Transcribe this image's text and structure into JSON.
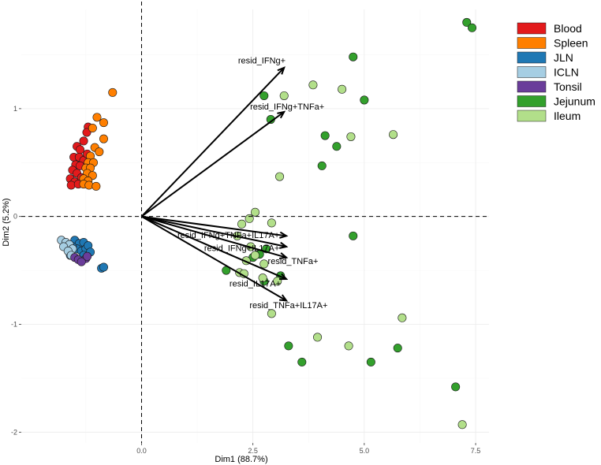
{
  "chart_data": {
    "type": "scatter",
    "title": "",
    "xlabel": "Dim1 (88.7%)",
    "ylabel": "Dim2 (5.2%)",
    "xlim": [
      -2.7,
      7.8
    ],
    "ylim": [
      -2.1,
      1.92
    ],
    "x_ticks": [
      0,
      2.5,
      5,
      7.5
    ],
    "x_tick_labels": [
      "0.0",
      "2.5",
      "5.0",
      "7.5"
    ],
    "y_ticks": [
      -2,
      -1,
      0,
      1
    ],
    "y_tick_labels": [
      "-2",
      "-1",
      "0",
      "1"
    ],
    "grid": true,
    "reference_lines": {
      "x": 0,
      "y": 0
    },
    "legend_position": "top-right",
    "series": [
      {
        "name": "Blood",
        "color": "#e31a1c",
        "points": [
          [
            -1.2,
            0.83
          ],
          [
            -1.23,
            0.78
          ],
          [
            -1.3,
            0.7
          ],
          [
            -1.45,
            0.65
          ],
          [
            -1.38,
            0.62
          ],
          [
            -1.52,
            0.55
          ],
          [
            -1.4,
            0.55
          ],
          [
            -1.3,
            0.52
          ],
          [
            -1.48,
            0.48
          ],
          [
            -1.38,
            0.47
          ],
          [
            -1.55,
            0.43
          ],
          [
            -1.45,
            0.4
          ],
          [
            -1.35,
            0.36
          ],
          [
            -1.6,
            0.35
          ],
          [
            -1.5,
            0.32
          ],
          [
            -1.58,
            0.29
          ],
          [
            -1.42,
            0.3
          ],
          [
            -1.22,
            0.58
          ]
        ]
      },
      {
        "name": "Spleen",
        "color": "#ff7f00",
        "points": [
          [
            -0.65,
            1.15
          ],
          [
            -1.0,
            0.92
          ],
          [
            -0.85,
            0.87
          ],
          [
            -1.1,
            0.82
          ],
          [
            -0.85,
            0.72
          ],
          [
            -1.05,
            0.64
          ],
          [
            -0.95,
            0.6
          ],
          [
            -1.15,
            0.56
          ],
          [
            -1.2,
            0.5
          ],
          [
            -1.08,
            0.5
          ],
          [
            -1.25,
            0.45
          ],
          [
            -1.15,
            0.45
          ],
          [
            -1.22,
            0.4
          ],
          [
            -1.1,
            0.38
          ],
          [
            -1.3,
            0.35
          ],
          [
            -1.2,
            0.33
          ],
          [
            -1.3,
            0.3
          ],
          [
            -1.18,
            0.29
          ],
          [
            -1.02,
            0.28
          ]
        ]
      },
      {
        "name": "JLN",
        "color": "#1f78b4",
        "points": [
          [
            -1.5,
            -0.22
          ],
          [
            -1.4,
            -0.25
          ],
          [
            -1.3,
            -0.24
          ],
          [
            -1.45,
            -0.3
          ],
          [
            -1.35,
            -0.32
          ],
          [
            -1.25,
            -0.3
          ],
          [
            -1.55,
            -0.28
          ],
          [
            -1.2,
            -0.27
          ],
          [
            -1.15,
            -0.33
          ],
          [
            -0.9,
            -0.48
          ],
          [
            -0.85,
            -0.47
          ],
          [
            -1.6,
            -0.36
          ],
          [
            -1.3,
            -0.36
          ]
        ]
      },
      {
        "name": "ICLN",
        "color": "#a6cee3",
        "points": [
          [
            -1.8,
            -0.22
          ],
          [
            -1.7,
            -0.24
          ],
          [
            -1.62,
            -0.26
          ],
          [
            -1.75,
            -0.28
          ],
          [
            -1.55,
            -0.3
          ],
          [
            -1.65,
            -0.32
          ],
          [
            -1.58,
            -0.36
          ]
        ]
      },
      {
        "name": "Tonsil",
        "color": "#6a3d9a",
        "points": [
          [
            -1.5,
            -0.38
          ],
          [
            -1.42,
            -0.4
          ],
          [
            -1.25,
            -0.39
          ],
          [
            -1.35,
            -0.42
          ],
          [
            -1.22,
            -0.37
          ]
        ]
      },
      {
        "name": "Jejunum",
        "color": "#33a02c",
        "points": [
          [
            7.3,
            1.8
          ],
          [
            7.42,
            1.75
          ],
          [
            4.75,
            1.48
          ],
          [
            2.75,
            1.12
          ],
          [
            5.0,
            1.08
          ],
          [
            2.9,
            0.9
          ],
          [
            4.12,
            0.75
          ],
          [
            4.38,
            0.65
          ],
          [
            4.05,
            0.47
          ],
          [
            4.75,
            -0.18
          ],
          [
            2.8,
            -0.3
          ],
          [
            2.65,
            -0.35
          ],
          [
            2.5,
            -0.38
          ],
          [
            1.9,
            -0.5
          ],
          [
            3.12,
            -0.55
          ],
          [
            2.75,
            -0.6
          ],
          [
            3.3,
            -1.2
          ],
          [
            3.6,
            -1.35
          ],
          [
            5.15,
            -1.35
          ],
          [
            5.75,
            -1.22
          ],
          [
            7.05,
            -1.58
          ]
        ]
      },
      {
        "name": "Ileum",
        "color": "#b2df8a",
        "points": [
          [
            3.2,
            1.12
          ],
          [
            3.85,
            1.22
          ],
          [
            4.5,
            1.18
          ],
          [
            5.65,
            0.76
          ],
          [
            4.7,
            0.74
          ],
          [
            3.1,
            0.37
          ],
          [
            2.55,
            0.04
          ],
          [
            2.42,
            -0.02
          ],
          [
            2.25,
            -0.07
          ],
          [
            2.92,
            -0.06
          ],
          [
            2.15,
            -0.18
          ],
          [
            2.45,
            -0.28
          ],
          [
            2.55,
            -0.36
          ],
          [
            2.35,
            -0.41
          ],
          [
            2.75,
            -0.44
          ],
          [
            2.2,
            -0.52
          ],
          [
            2.3,
            -0.53
          ],
          [
            2.72,
            -0.57
          ],
          [
            3.05,
            -0.6
          ],
          [
            2.92,
            -0.9
          ],
          [
            3.95,
            -1.12
          ],
          [
            4.65,
            -1.2
          ],
          [
            5.85,
            -0.94
          ],
          [
            7.2,
            -1.93
          ]
        ]
      }
    ],
    "vectors": [
      {
        "label": "resid_IFNg+",
        "x": 3.2,
        "y": 1.38,
        "label_x": 2.7,
        "label_y": 1.42
      },
      {
        "label": "resid_IFNg+TNFa+",
        "x": 3.2,
        "y": 0.97,
        "label_x": 3.27,
        "label_y": 0.99
      },
      {
        "label": "resid_IFNg+TNFa+IL17A+",
        "x": 3.25,
        "y": -0.18,
        "label_x": 1.95,
        "label_y": -0.2
      },
      {
        "label": "resid_IFNg+IL17A+",
        "x": 3.25,
        "y": -0.28,
        "label_x": 2.25,
        "label_y": -0.32
      },
      {
        "label": "resid_TNFa+",
        "x": 3.25,
        "y": -0.38,
        "label_x": 3.4,
        "label_y": -0.44
      },
      {
        "label": "resid_IL17A+",
        "x": 3.25,
        "y": -0.58,
        "label_x": 2.55,
        "label_y": -0.65
      },
      {
        "label": "resid_TNFa+IL17A+",
        "x": 3.25,
        "y": -0.78,
        "label_x": 3.3,
        "label_y": -0.85
      }
    ]
  }
}
